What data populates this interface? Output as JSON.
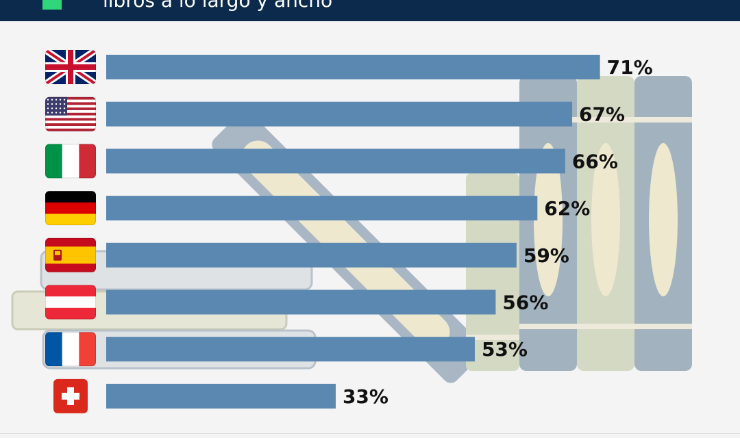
{
  "header": {
    "subtitle": "libros a lo largo y ancho"
  },
  "colors": {
    "header_bg": "#0b2a4c",
    "accent": "#2fd67a",
    "bar": "#5a88b1",
    "page_bg": "#f4f4f4",
    "value_text": "#111111"
  },
  "chart_data": {
    "type": "bar",
    "orientation": "horizontal",
    "categories": [
      "Reino Unido",
      "Estados Unidos",
      "Italia",
      "Alemania",
      "España",
      "Austria",
      "Francia",
      "Suiza"
    ],
    "category_icons": [
      "flag-uk-icon",
      "flag-us-icon",
      "flag-italy-icon",
      "flag-germany-icon",
      "flag-spain-icon",
      "flag-austria-icon",
      "flag-france-icon",
      "flag-switzerland-icon"
    ],
    "values": [
      71,
      67,
      66,
      62,
      59,
      56,
      53,
      33
    ],
    "labels": [
      "71%",
      "67%",
      "66%",
      "62%",
      "59%",
      "56%",
      "53%",
      "33%"
    ],
    "unit": "%",
    "xlim": [
      0,
      100
    ],
    "grid": false,
    "legend": "none"
  }
}
